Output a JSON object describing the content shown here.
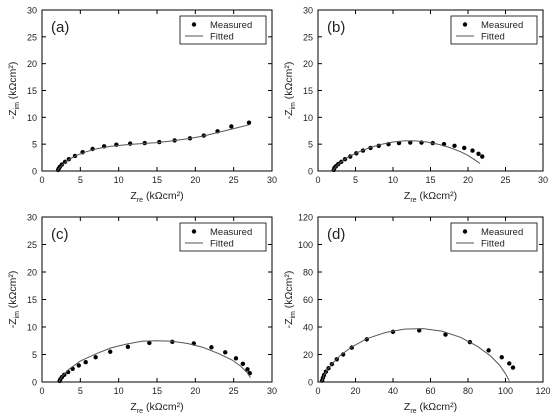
{
  "chart_data": [
    {
      "type": "scatter",
      "panel_label": "(a)",
      "xlim": [
        0,
        30
      ],
      "ylim": [
        0,
        30
      ],
      "xticks": [
        "0",
        "5",
        "10",
        "15",
        "20",
        "25",
        "30"
      ],
      "yticks": [
        "0",
        "5",
        "10",
        "15",
        "20",
        "25",
        "30"
      ],
      "xlabel": {
        "main": "Z",
        "sub": "re",
        "tail": " (kΩcm²)"
      },
      "ylabel": {
        "main": "-Z",
        "sub": "im",
        "tail": " (kΩcm²)"
      },
      "legend": {
        "position": "top-right",
        "entries": [
          "Measured",
          "Fitted"
        ]
      },
      "series": [
        {
          "name": "Measured",
          "kind": "points",
          "x": [
            2.1,
            2.2,
            2.35,
            2.6,
            3.0,
            3.5,
            4.3,
            5.3,
            6.6,
            8.1,
            9.7,
            11.5,
            13.4,
            15.3,
            17.3,
            19.3,
            21.1,
            22.9,
            24.7,
            27.0
          ],
          "y": [
            0.2,
            0.5,
            0.8,
            1.2,
            1.7,
            2.2,
            2.8,
            3.5,
            4.1,
            4.6,
            4.9,
            5.1,
            5.2,
            5.4,
            5.7,
            6.1,
            6.6,
            7.4,
            8.3,
            9.0
          ]
        },
        {
          "name": "Fitted",
          "kind": "line",
          "x": [
            2.0,
            2.3,
            2.8,
            3.5,
            4.5,
            5.8,
            7.3,
            9.0,
            11.0,
            13.0,
            15.0,
            17.0,
            19.0,
            21.0,
            23.0,
            25.0,
            27.0
          ],
          "y": [
            0.0,
            0.6,
            1.3,
            2.1,
            2.9,
            3.6,
            4.2,
            4.6,
            4.9,
            5.1,
            5.3,
            5.6,
            6.0,
            6.5,
            7.2,
            7.9,
            8.6
          ]
        }
      ]
    },
    {
      "type": "scatter",
      "panel_label": "(b)",
      "xlim": [
        0,
        30
      ],
      "ylim": [
        0,
        30
      ],
      "xticks": [
        "0",
        "5",
        "10",
        "15",
        "20",
        "25",
        "30"
      ],
      "yticks": [
        "0",
        "5",
        "10",
        "15",
        "20",
        "25",
        "30"
      ],
      "xlabel": {
        "main": "Z",
        "sub": "re",
        "tail": " (kΩcm²)"
      },
      "ylabel": {
        "main": "-Z",
        "sub": "im",
        "tail": " (kΩcm²)"
      },
      "legend": {
        "position": "top-right",
        "entries": [
          "Measured",
          "Fitted"
        ]
      },
      "series": [
        {
          "name": "Measured",
          "kind": "points",
          "x": [
            2.1,
            2.2,
            2.4,
            2.7,
            3.1,
            3.6,
            4.3,
            5.1,
            6.0,
            7.0,
            8.1,
            9.4,
            10.8,
            12.3,
            13.8,
            15.3,
            16.8,
            18.2,
            19.5,
            20.6,
            21.4,
            21.9
          ],
          "y": [
            0.2,
            0.6,
            0.9,
            1.3,
            1.7,
            2.2,
            2.7,
            3.3,
            3.8,
            4.3,
            4.7,
            5.0,
            5.2,
            5.3,
            5.3,
            5.2,
            5.0,
            4.7,
            4.3,
            3.8,
            3.2,
            2.7
          ]
        },
        {
          "name": "Fitted",
          "kind": "line",
          "x": [
            2.0,
            2.3,
            3.0,
            4.0,
            5.5,
            7.0,
            8.5,
            10.0,
            11.5,
            13.0,
            14.5,
            16.0,
            17.5,
            19.0,
            20.0,
            21.0,
            21.6
          ],
          "y": [
            0.0,
            0.7,
            1.6,
            2.6,
            3.6,
            4.4,
            5.0,
            5.4,
            5.6,
            5.6,
            5.4,
            5.0,
            4.4,
            3.6,
            2.9,
            2.0,
            1.4
          ]
        }
      ]
    },
    {
      "type": "scatter",
      "panel_label": "(c)",
      "xlim": [
        0,
        30
      ],
      "ylim": [
        0,
        30
      ],
      "xticks": [
        "0",
        "5",
        "10",
        "15",
        "20",
        "25",
        "30"
      ],
      "yticks": [
        "0",
        "5",
        "10",
        "15",
        "20",
        "25",
        "30"
      ],
      "xlabel": {
        "main": "Z",
        "sub": "re",
        "tail": " (kΩcm²)"
      },
      "ylabel": {
        "main": "-Z",
        "sub": "im",
        "tail": " (kΩcm²)"
      },
      "legend": {
        "position": "top-right",
        "entries": [
          "Measured",
          "Fitted"
        ]
      },
      "series": [
        {
          "name": "Measured",
          "kind": "points",
          "x": [
            2.3,
            2.4,
            2.6,
            2.9,
            3.4,
            4.0,
            4.8,
            5.7,
            7.0,
            8.9,
            11.2,
            14.0,
            17.0,
            19.8,
            22.1,
            23.9,
            25.3,
            26.2,
            26.8,
            27.1
          ],
          "y": [
            0.2,
            0.5,
            0.9,
            1.3,
            1.8,
            2.4,
            3.0,
            3.6,
            4.5,
            5.5,
            6.4,
            7.1,
            7.3,
            7.0,
            6.3,
            5.4,
            4.3,
            3.3,
            2.3,
            1.6
          ]
        },
        {
          "name": "Fitted",
          "kind": "line",
          "x": [
            2.2,
            2.6,
            3.5,
            5.0,
            7.0,
            9.0,
            11.0,
            13.0,
            15.0,
            17.0,
            19.0,
            21.0,
            23.0,
            24.8,
            26.0,
            26.8,
            27.2
          ],
          "y": [
            0.0,
            1.0,
            2.3,
            3.8,
            5.1,
            6.2,
            6.9,
            7.4,
            7.5,
            7.4,
            7.0,
            6.3,
            5.2,
            4.0,
            2.8,
            1.6,
            0.8
          ]
        }
      ]
    },
    {
      "type": "scatter",
      "panel_label": "(d)",
      "xlim": [
        0,
        120
      ],
      "ylim": [
        0,
        120
      ],
      "xticks": [
        "0",
        "20",
        "40",
        "60",
        "80",
        "100",
        "120"
      ],
      "yticks": [
        "0",
        "20",
        "40",
        "60",
        "80",
        "100",
        "120"
      ],
      "xlabel": {
        "main": "Z",
        "sub": "re",
        "tail": " (kΩcm²)"
      },
      "ylabel": {
        "main": "-Z",
        "sub": "im",
        "tail": " (kΩcm²)"
      },
      "legend": {
        "position": "top-right",
        "entries": [
          "Measured",
          "Fitted"
        ]
      },
      "series": [
        {
          "name": "Measured",
          "kind": "points",
          "x": [
            2.2,
            2.6,
            3.2,
            4.2,
            5.6,
            7.4,
            10.0,
            13.4,
            18.0,
            26.0,
            40.0,
            54.0,
            68.0,
            81.0,
            91.0,
            98.0,
            102.0,
            104.0
          ],
          "y": [
            1.0,
            3.0,
            5.0,
            7.5,
            10.0,
            13.0,
            16.5,
            20.0,
            25.0,
            31.0,
            36.5,
            37.5,
            34.5,
            29.0,
            23.0,
            18.0,
            13.5,
            10.5
          ]
        },
        {
          "name": "Fitted",
          "kind": "line",
          "x": [
            2.0,
            3.0,
            5.0,
            8.0,
            12.0,
            18.0,
            26.0,
            36.0,
            46.0,
            56.0,
            66.0,
            76.0,
            85.0,
            92.0,
            97.0,
            100.0,
            102.0
          ],
          "y": [
            0.0,
            4.5,
            9.0,
            14.0,
            19.5,
            25.5,
            31.5,
            36.0,
            38.5,
            38.8,
            37.0,
            32.5,
            26.0,
            19.0,
            12.0,
            6.0,
            1.0
          ]
        }
      ]
    }
  ]
}
